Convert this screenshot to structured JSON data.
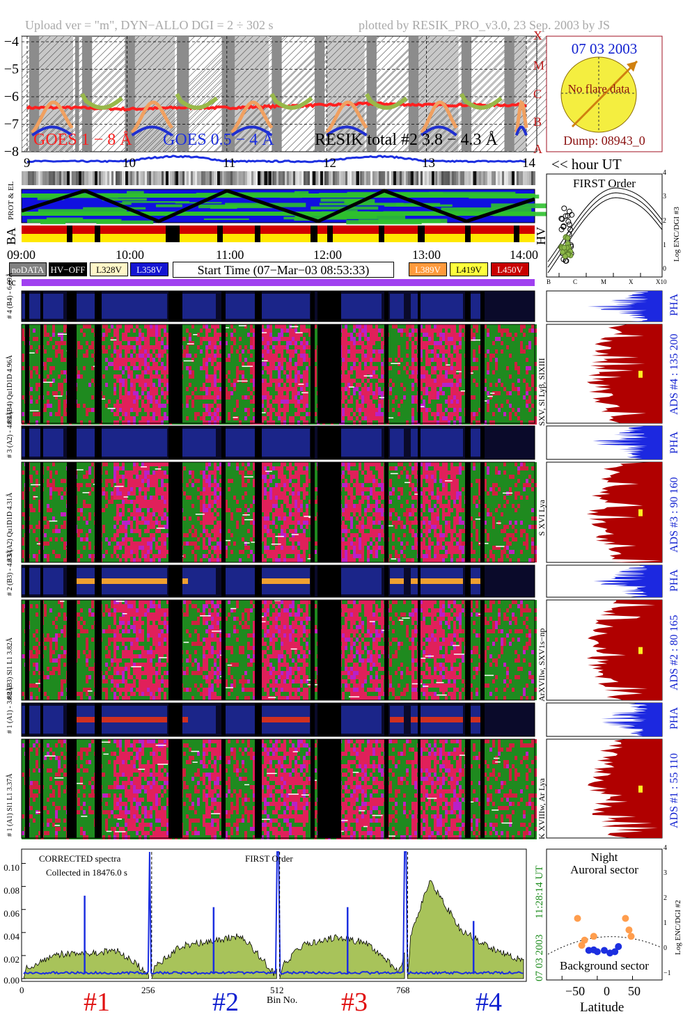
{
  "header": {
    "left": "Upload ver = \"m\", DYN−ALLO DGI =   2 ÷ 302 s",
    "right": "plotted by RESIK_PRO_v3.0, 23 Sep. 2003 by JS"
  },
  "goes_panel": {
    "y_ticks": [
      "−4",
      "−5",
      "−6",
      "−7",
      "−8"
    ],
    "class_letters": [
      "X",
      "M",
      "C",
      "B",
      "A"
    ],
    "legend": [
      {
        "text": "GOES 1 − 8 Å",
        "color": "#ff2020"
      },
      {
        "text": "GOES 0.5 − 4 Å",
        "color": "#1c2fe0"
      },
      {
        "text": "RESIK total #2  3.8 − 4.3 Å",
        "color": "#000000"
      }
    ],
    "hour_ticks": [
      "9",
      "10",
      "11",
      "12",
      "13",
      "14"
    ],
    "hour_label": "<< hour UT"
  },
  "sun_panel": {
    "date": "07 03 2003",
    "status": "No flare data",
    "dump": "Dump: 08943_0"
  },
  "status_panel": {
    "left_labels": [
      "BA",
      "PROT & EL"
    ],
    "right_label": "HV",
    "time_ticks": [
      "09:00",
      "10:00",
      "11:00",
      "12:00",
      "13:00",
      "14:00"
    ],
    "legend_left": [
      {
        "text": "noDATA",
        "bg": "#808080",
        "fg": "#ffffff"
      },
      {
        "text": "HV−OFF",
        "bg": "#000000",
        "fg": "#ffffff"
      },
      {
        "text": "L328V",
        "bg": "#fff6c8",
        "fg": "#000000"
      },
      {
        "text": "L358V",
        "bg": "#1414d2",
        "fg": "#ffffff"
      }
    ],
    "start_time": "Start Time (07−Mar−03 08:53:33)",
    "legend_right": [
      {
        "text": "L389V",
        "bg": "#ff9a3c",
        "fg": "#ffffff"
      },
      {
        "text": "L419V",
        "bg": "#ffff3c",
        "fg": "#000000"
      },
      {
        "text": "L450V",
        "bg": "#c80000",
        "fg": "#ffffff"
      }
    ],
    "tc_label": "tc"
  },
  "first_order_panel": {
    "title": "FIRST Order",
    "ylabel": "Log ENC/DGI #3",
    "y_ticks": [
      "4",
      "3",
      "2",
      "1",
      "0"
    ],
    "x_ticks": [
      "B",
      "C",
      "M",
      "X",
      "X10"
    ]
  },
  "detectors": [
    {
      "pha_label": "# 4 (B4) - 6.09Å",
      "main_label": "# 4 (B4) Qu1D1D 4.96Å",
      "line_label": "SXV, Sl Lyβ, SIXIII",
      "ads": "ADS #4 :   135 200",
      "ads_color": "#1020d0"
    },
    {
      "pha_label": "# 3 (A2) - 4.89Å",
      "main_label": "# 3 (A2) Qu1D1D 4.31Å",
      "line_label": "S XVI Lya",
      "ads": "ADS #3 :   90 160",
      "ads_color": "#1020d0"
    },
    {
      "pha_label": "# 2 (B3) - 4.33Å",
      "main_label": "# 2 (B3) Sl1 L1 3.82Å",
      "line_label": "ArXVIIw, SXV1s−np",
      "ads": "ADS #2 :   80 165",
      "ads_color": "#1020d0"
    },
    {
      "pha_label": "# 1 (A1) - 3.88Å",
      "main_label": "# 1 (A1) Sl1 L1 3.37Å",
      "line_label": "K XVIIIw, Ar Lya",
      "ads": "ADS #1 :   55 110",
      "ads_color": "#1020d0"
    }
  ],
  "pha_word": "PHA",
  "spectrum_panel": {
    "annotation1": "CORRECTED spectra",
    "annotation2": "Collected in 18476.0 s",
    "annotation3": "FIRST Order",
    "right_date": "07 03 2003",
    "right_time": "11:28:14 UT",
    "y_ticks": [
      "0.10",
      "0.08",
      "0.06",
      "0.04",
      "0.02",
      "0.00"
    ],
    "bin_ticks": [
      "0",
      "256",
      "512",
      "768"
    ],
    "xlabel": "Bin No.",
    "sections": [
      {
        "text": "#1",
        "color": "#e01010"
      },
      {
        "text": "#2",
        "color": "#1020d0"
      },
      {
        "text": "#3",
        "color": "#e01010"
      },
      {
        "text": "#4",
        "color": "#1020d0"
      }
    ]
  },
  "latitude_panel": {
    "title1": "Night",
    "title2": "Auroral sector",
    "bottom": "Background sector",
    "ylabel": "Log ENC/DGI #2",
    "y_ticks": [
      "4",
      "3",
      "2",
      "1",
      "0",
      "−1"
    ],
    "x_ticks": [
      "−50",
      "0",
      "50"
    ],
    "xlabel": "Latitude"
  },
  "chart_data": [
    {
      "type": "line",
      "title": "",
      "x": [
        9.0,
        9.5,
        10.0,
        10.5,
        11.0,
        11.5,
        12.0,
        12.5,
        13.0,
        13.5,
        14.0
      ],
      "xlabel": "hour UT",
      "ylabel": "",
      "ylim": [
        -8.2,
        -3.8
      ],
      "series": [
        {
          "name": "GOES 1 − 8 Å",
          "values": [
            -6.4,
            -6.4,
            -6.45,
            -6.4,
            -6.4,
            -6.35,
            -6.3,
            -6.25,
            -6.3,
            -6.3,
            -6.3
          ]
        },
        {
          "name": "GOES 0.5 − 4 Å",
          "values": [
            -8.3,
            -8.3,
            -8.2,
            -8.3,
            -8.3,
            -8.25,
            -8.2,
            -8.2,
            -8.3,
            -8.3,
            -8.3
          ]
        }
      ]
    },
    {
      "type": "area",
      "title": "",
      "x": [
        0,
        64,
        128,
        192,
        256,
        320,
        384,
        448,
        512,
        576,
        640,
        704,
        768,
        832,
        896,
        960,
        1000
      ],
      "xlabel": "Bin No.",
      "xlim": [
        0,
        1000
      ],
      "ylim": [
        0,
        0.11
      ],
      "series": [
        {
          "name": "",
          "values": [
            0.008,
            0.021,
            0.022,
            0.024,
            0.005,
            0.028,
            0.033,
            0.037,
            0.005,
            0.03,
            0.036,
            0.031,
            0.006,
            0.085,
            0.042,
            0.026,
            0.015
          ]
        },
        {
          "name": "",
          "values": [
            0.005,
            0.005,
            0.004,
            0.004,
            0.002,
            0.007,
            0.006,
            0.006,
            0.002,
            0.005,
            0.004,
            0.004,
            0.003,
            0.004,
            0.004,
            0.004,
            0.003
          ]
        }
      ]
    },
    {
      "type": "scatter",
      "title": "",
      "xlabel": "Latitude",
      "ylabel": "Log ENC/DGI #2",
      "xlim": [
        -70,
        90
      ],
      "ylim": [
        -1,
        4
      ],
      "series": [
        {
          "name": "Auroral sector",
          "color": "#ff9d4d",
          "points": [
            [
              -28,
              1.35
            ],
            [
              -5,
              0.65
            ],
            [
              -22,
              0.3
            ],
            [
              -18,
              0.5
            ],
            [
              40,
              1.35
            ],
            [
              45,
              0.9
            ],
            [
              48,
              0.65
            ]
          ]
        },
        {
          "name": "Background sector",
          "color": "#1c2fe0",
          "points": [
            [
              -12,
              0.1
            ],
            [
              -5,
              0.12
            ],
            [
              0,
              0.05
            ],
            [
              10,
              0.1
            ],
            [
              18,
              0.0
            ],
            [
              25,
              0.05
            ],
            [
              30,
              0.25
            ]
          ]
        }
      ]
    }
  ]
}
